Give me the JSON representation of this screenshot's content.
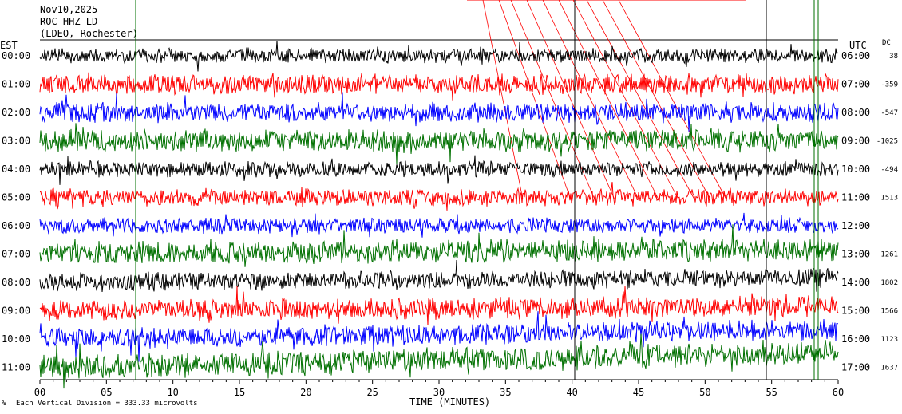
{
  "header": {
    "date": "Nov10,2025",
    "station": "ROC HHZ LD --",
    "network": "(LDEO, Rochester)"
  },
  "chart_data": {
    "type": "line",
    "title": "",
    "xlabel": "TIME (MINUTES)",
    "ylabel": "",
    "left_axis_label": "EST",
    "right_axis_label": "UTC",
    "dc_label": "DC",
    "xlim": [
      0,
      60
    ],
    "x_ticks": [
      "00",
      "05",
      "10",
      "15",
      "20",
      "25",
      "30",
      "35",
      "40",
      "45",
      "50",
      "55",
      "60"
    ],
    "x_tick_values": [
      0,
      5,
      10,
      15,
      20,
      25,
      30,
      35,
      40,
      45,
      50,
      55,
      60
    ],
    "scale_note": "Each Vertical Division =  333.33 microvolts",
    "colors": {
      "black": "#000000",
      "red": "#ff0000",
      "blue": "#0000ff",
      "green": "#007000"
    },
    "traces": [
      {
        "est": "00:00",
        "utc": "06:00",
        "dc": "38",
        "color": "#000000",
        "amp": 10
      },
      {
        "est": "01:00",
        "utc": "07:00",
        "dc": "-359",
        "color": "#ff0000",
        "amp": 14
      },
      {
        "est": "02:00",
        "utc": "08:00",
        "dc": "-547",
        "color": "#0000ff",
        "amp": 14
      },
      {
        "est": "03:00",
        "utc": "09:00",
        "dc": "-1025",
        "color": "#007000",
        "amp": 16
      },
      {
        "est": "04:00",
        "utc": "10:00",
        "dc": "-494",
        "color": "#000000",
        "amp": 11
      },
      {
        "est": "05:00",
        "utc": "11:00",
        "dc": "1513",
        "color": "#ff0000",
        "amp": 12
      },
      {
        "est": "06:00",
        "utc": "12:00",
        "dc": "",
        "color": "#0000ff",
        "amp": 11
      },
      {
        "est": "07:00",
        "utc": "13:00",
        "dc": "1261",
        "color": "#007000",
        "amp": 16
      },
      {
        "est": "08:00",
        "utc": "14:00",
        "dc": "1802",
        "color": "#000000",
        "amp": 13
      },
      {
        "est": "09:00",
        "utc": "15:00",
        "dc": "1566",
        "color": "#ff0000",
        "amp": 15
      },
      {
        "est": "10:00",
        "utc": "16:00",
        "dc": "1123",
        "color": "#0000ff",
        "amp": 15
      },
      {
        "est": "11:00",
        "utc": "17:00",
        "dc": "1637",
        "color": "#007000",
        "amp": 17
      }
    ]
  }
}
